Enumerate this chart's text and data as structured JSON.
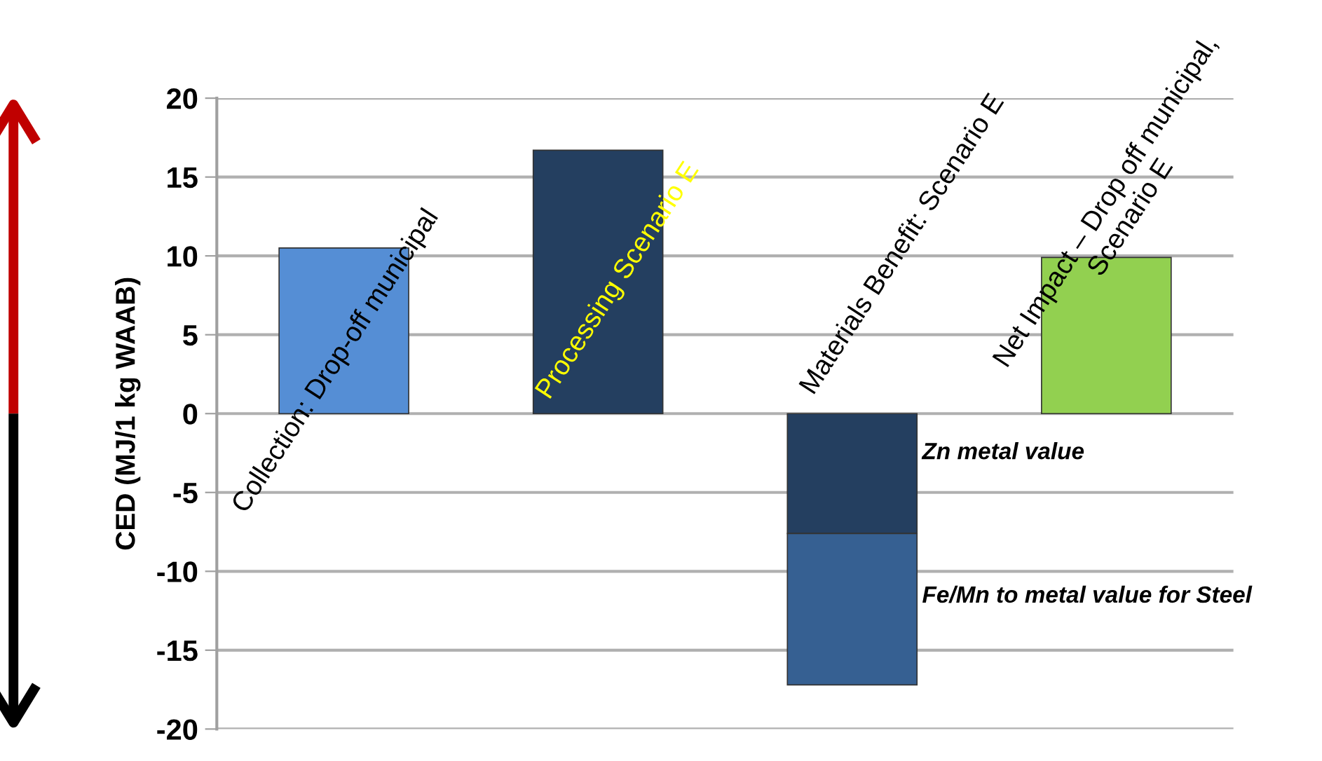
{
  "chart_data": {
    "type": "bar",
    "stacked": true,
    "categories": [
      "Collection: Drop-off municipal",
      "Processing Scenario E",
      "Materials Benefit: Scenario E",
      "Net Impact – Drop off municipal,\nScenario E"
    ],
    "series": [
      {
        "colors": [
          "#558ed5",
          "#243f60",
          null,
          "#92d050"
        ],
        "values": [
          10.5,
          16.7,
          null,
          9.9
        ]
      },
      {
        "name": "Zn metal value",
        "color": "#243f60",
        "values": [
          null,
          null,
          -7.6,
          null
        ]
      },
      {
        "name": "Fe/Mn to metal value for Steel",
        "color": "#366092",
        "values": [
          null,
          null,
          -9.6,
          null
        ]
      }
    ],
    "ylabel": "CED (MJ/1 kg WAAB)",
    "ylim": [
      -20,
      20
    ],
    "yticks": [
      -20,
      -15,
      -10,
      -5,
      0,
      5,
      10,
      15,
      20
    ],
    "grid": "y"
  }
}
